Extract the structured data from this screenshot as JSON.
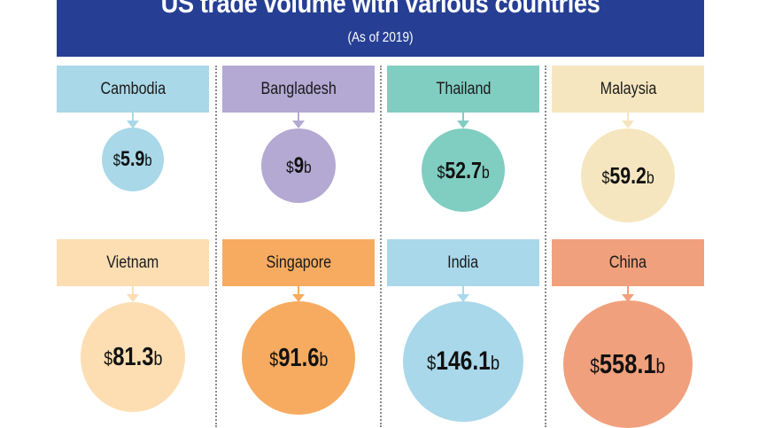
{
  "header": {
    "title": "US trade volume with various countries",
    "subtitle": "(As of 2019)"
  },
  "chart_data": {
    "type": "bubble",
    "title": "US trade volume with various countries",
    "subtitle": "(As of 2019)",
    "unit_prefix": "$",
    "unit_suffix": "b",
    "items": [
      {
        "country": "Cambodia",
        "value": 5.9,
        "display": "5.9",
        "color": "#a9d8e8"
      },
      {
        "country": "Bangladesh",
        "value": 9,
        "display": "9",
        "color": "#b3a9d3"
      },
      {
        "country": "Thailand",
        "value": 52.7,
        "display": "52.7",
        "color": "#80cdc1"
      },
      {
        "country": "Malaysia",
        "value": 59.2,
        "display": "59.2",
        "color": "#f6e6bf"
      },
      {
        "country": "Vietnam",
        "value": 81.3,
        "display": "81.3",
        "color": "#fddeb3"
      },
      {
        "country": "Singapore",
        "value": 91.6,
        "display": "91.6",
        "color": "#f7ab60"
      },
      {
        "country": "India",
        "value": 146.1,
        "display": "146.1",
        "color": "#a9d8ea"
      },
      {
        "country": "China",
        "value": 558.1,
        "display": "558.1",
        "color": "#f0a07c"
      }
    ]
  }
}
